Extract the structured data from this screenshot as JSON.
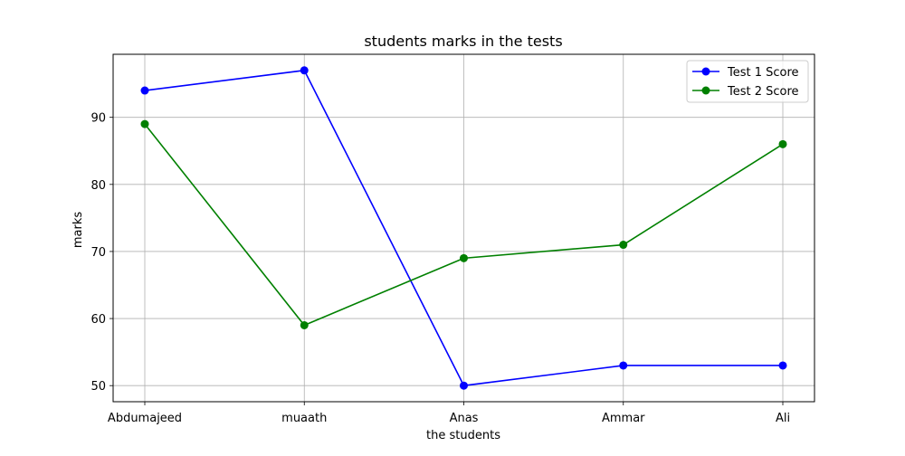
{
  "chart_data": {
    "type": "line",
    "title": "students marks in the tests",
    "xlabel": "the students",
    "ylabel": "marks",
    "categories": [
      "Abdumajeed",
      "muaath",
      "Anas",
      "Ammar",
      "Ali"
    ],
    "ylim": [
      47.6,
      99.4
    ],
    "yticks": [
      50,
      60,
      70,
      80,
      90
    ],
    "grid": true,
    "legend_position": "top-right",
    "series": [
      {
        "name": "Test 1 Score",
        "color": "#0000ff",
        "marker": "circle",
        "values": [
          94,
          97,
          50,
          53,
          53
        ]
      },
      {
        "name": "Test 2 Score",
        "color": "#008000",
        "marker": "circle",
        "values": [
          89,
          59,
          69,
          71,
          86
        ]
      }
    ]
  }
}
